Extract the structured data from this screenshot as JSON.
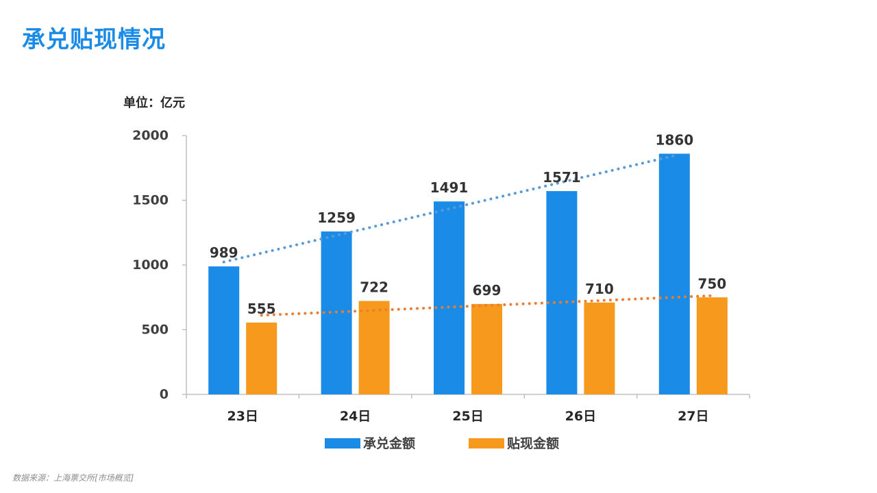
{
  "page": {
    "title": "承兑贴现情况",
    "source": "数据来源：上海票交所[市场概览]"
  },
  "chart_data": {
    "type": "bar",
    "unit_label": "单位：亿元",
    "categories": [
      "23日",
      "24日",
      "25日",
      "26日",
      "27日"
    ],
    "series": [
      {
        "name": "承兑金额",
        "values": [
          989,
          1259,
          1491,
          1571,
          1860
        ],
        "color": "#1a8be6",
        "trend_color": "#5b9bd5"
      },
      {
        "name": "贴现金额",
        "values": [
          555,
          722,
          699,
          710,
          750
        ],
        "color": "#f7991c",
        "trend_color": "#ed7d31"
      }
    ],
    "ylim": [
      0,
      2000
    ],
    "yticks": [
      0,
      500,
      1000,
      1500,
      2000
    ],
    "trendline": "linear, dotted",
    "data_labels": true,
    "grid": false,
    "legend": "bottom"
  }
}
